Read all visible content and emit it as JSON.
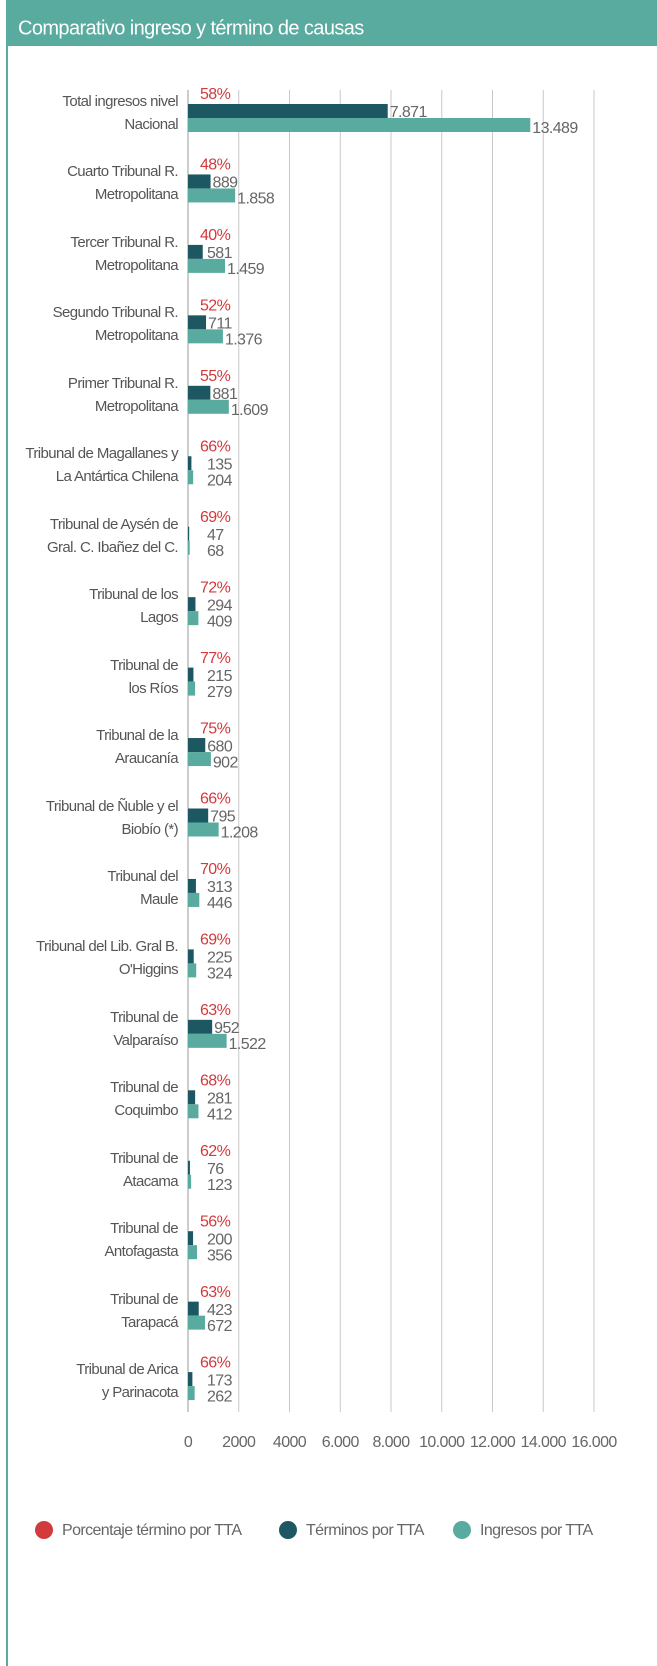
{
  "chart_data": {
    "type": "bar",
    "orientation": "horizontal",
    "title": "Comparativo ingreso y término de causas",
    "categories": [
      "Total ingresos nivel\nNacional",
      "Cuarto Tribunal R.\nMetropolitana",
      "Tercer Tribunal R.\nMetropolitana",
      "Segundo Tribunal R.\nMetropolitana",
      "Primer Tribunal R.\nMetropolitana",
      "Tribunal de Magallanes y\nLa Antártica Chilena",
      "Tribunal de Aysén de\nGral. C. Ibañez del C.",
      "Tribunal de los\nLagos",
      "Tribunal de\nlos Ríos",
      "Tribunal de la\nAraucanía",
      "Tribunal de Ñuble y el\nBiobío (*)",
      "Tribunal del\nMaule",
      "Tribunal del Lib. Gral B.\nO'Higgins",
      "Tribunal de\nValparaíso",
      "Tribunal de\nCoquimbo",
      "Tribunal de\nAtacama",
      "Tribunal de\nAntofagasta",
      "Tribunal de\nTarapacá",
      "Tribunal de Arica\ny Parinacota"
    ],
    "series": [
      {
        "name": "Porcentaje término por TTA",
        "color": "#d23a3c",
        "kind": "label",
        "values": [
          58,
          48,
          40,
          52,
          55,
          66,
          69,
          72,
          77,
          75,
          66,
          70,
          69,
          63,
          68,
          62,
          56,
          63,
          66
        ],
        "value_labels": [
          "58%",
          "48%",
          "40%",
          "52%",
          "55%",
          "66%",
          "69%",
          "72%",
          "77%",
          "75%",
          "66%",
          "70%",
          "69%",
          "63%",
          "68%",
          "62%",
          "56%",
          "63%",
          "66%"
        ]
      },
      {
        "name": "Términos por TTA",
        "color": "#1d5862",
        "values": [
          7871,
          889,
          581,
          711,
          881,
          135,
          47,
          294,
          215,
          680,
          795,
          313,
          225,
          952,
          281,
          76,
          200,
          423,
          173
        ],
        "value_labels": [
          "7.871",
          "889",
          "581",
          "711",
          "881",
          "135",
          "47",
          "294",
          "215",
          "680",
          "795",
          "313",
          "225",
          "952",
          "281",
          "76",
          "200",
          "423",
          "173"
        ]
      },
      {
        "name": "Ingresos por TTA",
        "color": "#5aab9f",
        "values": [
          13489,
          1858,
          1459,
          1376,
          1609,
          204,
          68,
          409,
          279,
          902,
          1208,
          446,
          324,
          1522,
          412,
          123,
          356,
          672,
          262
        ],
        "value_labels": [
          "13.489",
          "1.858",
          "1.459",
          "1.376",
          "1.609",
          "204",
          "68",
          "409",
          "279",
          "902",
          "1.208",
          "446",
          "324",
          "1.522",
          "412",
          "123",
          "356",
          "672",
          "262"
        ]
      }
    ],
    "xlim": [
      0,
      16000
    ],
    "xticks": [
      0,
      2000,
      4000,
      {
        "value": 6000,
        "label": "6.000"
      },
      {
        "value": 8000,
        "label": "8.000"
      },
      {
        "value": 10000,
        "label": "10.000"
      },
      {
        "value": 12000,
        "label": "12.000"
      },
      {
        "value": 14000,
        "label": "14.000"
      },
      {
        "value": 16000,
        "label": "16.000"
      }
    ],
    "grid": true,
    "legend": "bottom"
  }
}
